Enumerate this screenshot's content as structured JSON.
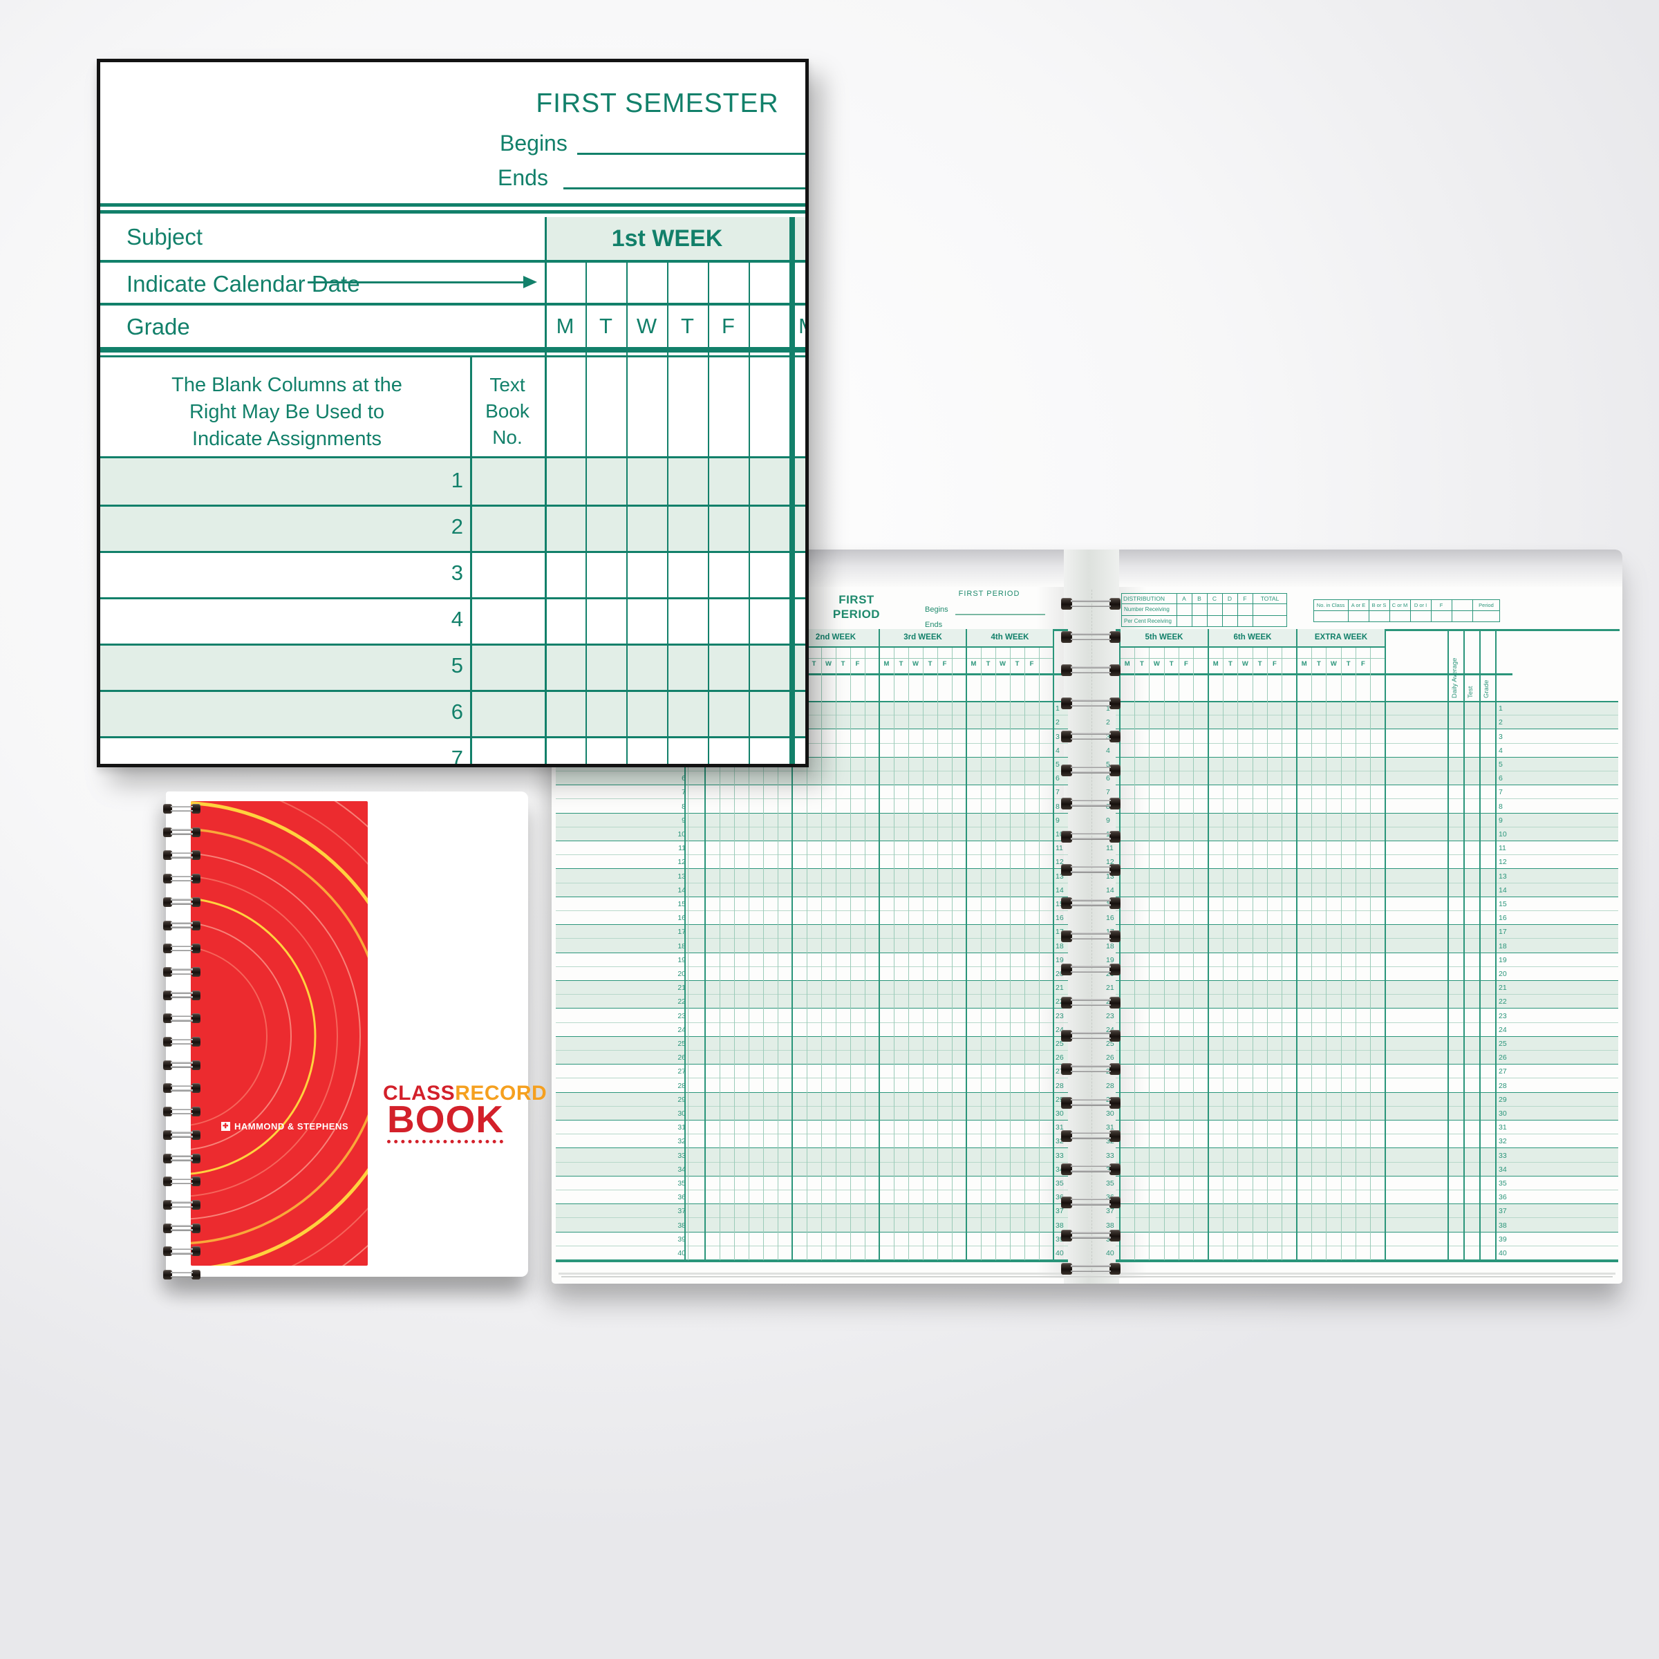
{
  "detail_card": {
    "semester_title": "FIRST SEMESTER",
    "begins_label": "Begins",
    "ends_label": "Ends",
    "subject_label": "Subject",
    "week_label": "1st WEEK",
    "calendar_label": "Indicate Calendar Date",
    "grade_label": "Grade",
    "day_letters": [
      "M",
      "T",
      "W",
      "T",
      "F"
    ],
    "next_week_day": "M",
    "note": "The Blank Columns at the\nRight May Be Used to\nIndicate Assignments",
    "textbook_label": "Text\nBook\nNo.",
    "row_count": 7
  },
  "ledger": {
    "period_title": "FIRST\nPERIOD",
    "period_heading": "FIRST PERIOD",
    "begins_label": "Begins",
    "ends_label": "Ends",
    "left_weeks": [
      "1st WEEK",
      "2nd WEEK",
      "3rd WEEK",
      "4th WEEK"
    ],
    "right_weeks": [
      "5th WEEK",
      "6th WEEK",
      "EXTRA WEEK"
    ],
    "day_letters": [
      "M",
      "T",
      "W",
      "T",
      "F"
    ],
    "distribution_table": {
      "headers": [
        "DISTRIBUTION",
        "A",
        "B",
        "C",
        "D",
        "F",
        "TOTAL"
      ],
      "row_labels": [
        "Number Receiving",
        "Per Cent Receiving"
      ]
    },
    "summary_table": {
      "headers": [
        "No. in Class",
        "A or E",
        "B or S",
        "C or M",
        "D or I",
        "F",
        "",
        "Period"
      ]
    },
    "vertical_columns": [
      "Daily Average",
      "Test",
      "Grade"
    ],
    "row_count": 40
  },
  "cover": {
    "brand": "HAMMOND & STEPHENS",
    "title_part1": "CLASS",
    "title_part2": "RECORD",
    "title_part3": "BOOK"
  },
  "colors": {
    "teal": "#12806a",
    "grid_strong": "#2a957a",
    "grid_light": "#9acbb8",
    "row_tint": "#e2eee7",
    "header_tint": "#e7f1ec",
    "cover_red": "#ec2b2f",
    "title_red": "#d3202a",
    "title_orange": "#f5a01f",
    "arc_yellow": "#ffd23f"
  }
}
